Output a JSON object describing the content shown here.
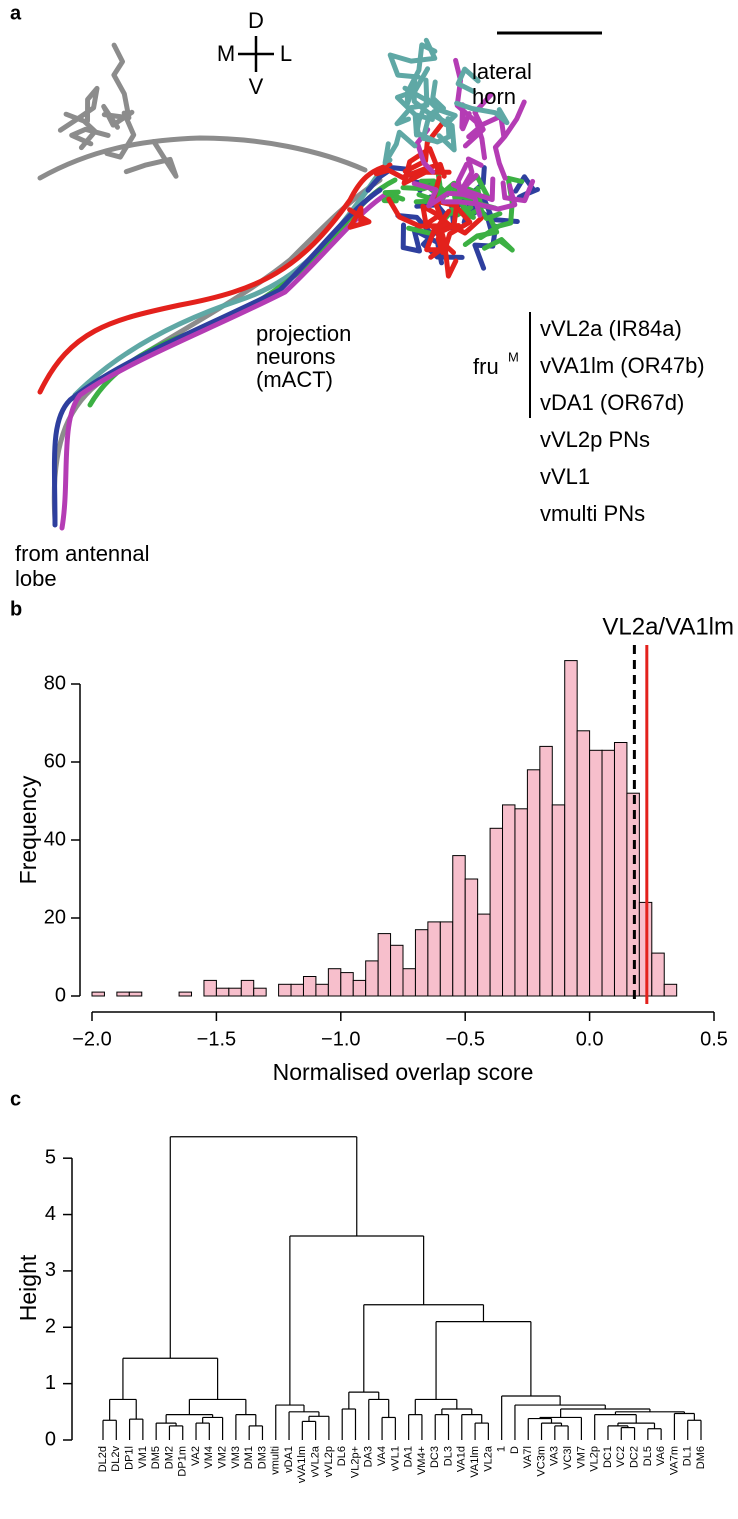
{
  "panel_a": {
    "label": "a",
    "compass": {
      "d": "D",
      "m": "M",
      "l": "L",
      "v": "V"
    },
    "lateral_horn": [
      "lateral",
      "horn"
    ],
    "projection_neurons": [
      "projection",
      "neurons",
      "(mACT)"
    ],
    "fru": "fru",
    "fru_superscript": "M",
    "legend": [
      {
        "name": "vVL2a (IR84a)",
        "color": "#2e3f9e"
      },
      {
        "name": "vVA1lm (OR47b)",
        "color": "#3cb043"
      },
      {
        "name": "vDA1 (OR67d)",
        "color": "#e3211c"
      },
      {
        "name": "vVL2p PNs",
        "color": "#b43cb4"
      },
      {
        "name": "vVL1",
        "color": "#5fa8a5"
      },
      {
        "name": "vmulti PNs",
        "color": "#8c8c8c"
      }
    ],
    "antennal_lobe": [
      "from antennal",
      "lobe"
    ]
  },
  "chart_data": [
    {
      "type": "histogram",
      "panel_label": "b",
      "xlabel": "Normalised overlap score",
      "ylabel": "Frequency",
      "bins": [
        -2.0,
        -1.95,
        -1.9,
        -1.85,
        -1.8,
        -1.75,
        -1.7,
        -1.65,
        -1.6,
        -1.55,
        -1.5,
        -1.45,
        -1.4,
        -1.35,
        -1.3,
        -1.25,
        -1.2,
        -1.15,
        -1.1,
        -1.05,
        -1.0,
        -0.95,
        -0.9,
        -0.85,
        -0.8,
        -0.75,
        -0.7,
        -0.65,
        -0.6,
        -0.55,
        -0.5,
        -0.45,
        -0.4,
        -0.35,
        -0.3,
        -0.25,
        -0.2,
        -0.15,
        -0.1,
        -0.05,
        0.0,
        0.05,
        0.1,
        0.15,
        0.2,
        0.25,
        0.3,
        0.35
      ],
      "values": [
        1,
        0,
        1,
        1,
        0,
        0,
        0,
        1,
        0,
        4,
        2,
        2,
        4,
        2,
        0,
        3,
        3,
        5,
        3,
        7,
        6,
        4,
        9,
        16,
        13,
        7,
        17,
        19,
        19,
        36,
        30,
        21,
        43,
        49,
        48,
        58,
        64,
        49,
        86,
        68,
        63,
        63,
        65,
        52,
        24,
        11,
        3
      ],
      "color": "#f7bfcc",
      "edgecolor": "#000000",
      "xlim": [
        -2.0,
        0.5
      ],
      "xticks": [
        {
          "value": -2.0,
          "label": "−2.0"
        },
        {
          "value": -1.5,
          "label": "−1.5"
        },
        {
          "value": -1.0,
          "label": "−1.0"
        },
        {
          "value": -0.5,
          "label": "−0.5"
        },
        {
          "value": 0.0,
          "label": "0.0"
        },
        0.5
      ],
      "ylim": [
        0,
        90
      ],
      "yticks": [
        0,
        20,
        40,
        60,
        80
      ],
      "lines": [
        {
          "value": 0.18,
          "style": "dashed",
          "color": "#000000"
        },
        {
          "value": 0.23,
          "style": "solid",
          "color": "#e3211c",
          "label": "VL2a/VA1lm"
        }
      ]
    },
    {
      "type": "dendrogram",
      "panel_label": "c",
      "ylabel": "Height",
      "ylim": [
        0,
        5.5
      ],
      "yticks": [
        0,
        1,
        2,
        3,
        4,
        5
      ],
      "tree": {
        "height": 5.38,
        "children": [
          {
            "height": 1.45,
            "children": [
              {
                "height": 0.72,
                "children": [
                  {
                    "height": 0.35,
                    "children": [
                      {
                        "label": "DL2d"
                      },
                      {
                        "label": "DL2v"
                      }
                    ]
                  },
                  {
                    "height": 0.37,
                    "children": [
                      {
                        "label": "DP1l"
                      },
                      {
                        "label": "VM1"
                      }
                    ]
                  }
                ]
              },
              {
                "height": 0.72,
                "children": [
                  {
                    "height": 0.45,
                    "children": [
                      {
                        "height": 0.3,
                        "children": [
                          {
                            "label": "DM5"
                          },
                          {
                            "height": 0.25,
                            "children": [
                              {
                                "label": "DM2"
                              },
                              {
                                "label": "DP1m"
                              }
                            ]
                          }
                        ]
                      },
                      {
                        "height": 0.4,
                        "children": [
                          {
                            "height": 0.3,
                            "children": [
                              {
                                "label": "VA2"
                              },
                              {
                                "label": "VM4"
                              }
                            ]
                          },
                          {
                            "label": "VM2"
                          }
                        ]
                      }
                    ]
                  },
                  {
                    "height": 0.45,
                    "children": [
                      {
                        "label": "VM3"
                      },
                      {
                        "height": 0.25,
                        "children": [
                          {
                            "label": "DM1"
                          },
                          {
                            "label": "DM3"
                          }
                        ]
                      }
                    ]
                  }
                ]
              }
            ]
          },
          {
            "height": 3.62,
            "children": [
              {
                "height": 0.62,
                "children": [
                  {
                    "label": "vmulti"
                  },
                  {
                    "height": 0.5,
                    "children": [
                      {
                        "label": "vDA1",
                        "color": "#e3211c"
                      },
                      {
                        "height": 0.42,
                        "children": [
                          {
                            "height": 0.33,
                            "children": [
                              {
                                "label": "vVA1lm",
                                "color": "#3cb043"
                              },
                              {
                                "label": "vVL2a",
                                "color": "#2e3f9e"
                              }
                            ]
                          },
                          {
                            "label": "vVL2p",
                            "color": "#b43cb4"
                          }
                        ]
                      }
                    ]
                  }
                ]
              },
              {
                "height": 2.4,
                "children": [
                  {
                    "height": 0.85,
                    "children": [
                      {
                        "height": 0.55,
                        "children": [
                          {
                            "label": "DL6"
                          },
                          {
                            "label": "VL2p+"
                          }
                        ]
                      },
                      {
                        "height": 0.72,
                        "children": [
                          {
                            "label": "DA3"
                          },
                          {
                            "height": 0.4,
                            "children": [
                              {
                                "label": "VA4"
                              },
                              {
                                "label": "vVL1"
                              }
                            ]
                          }
                        ]
                      }
                    ]
                  },
                  {
                    "height": 2.1,
                    "children": [
                      {
                        "height": 0.72,
                        "children": [
                          {
                            "height": 0.45,
                            "children": [
                              {
                                "label": "DA1",
                                "color": "#e3211c"
                              },
                              {
                                "label": "VM4+"
                              }
                            ]
                          },
                          {
                            "height": 0.55,
                            "children": [
                              {
                                "height": 0.45,
                                "children": [
                                  {
                                    "label": "DC3"
                                  },
                                  {
                                    "label": "DL3"
                                  }
                                ]
                              },
                              {
                                "height": 0.45,
                                "children": [
                                  {
                                    "label": "VA1d"
                                  },
                                  {
                                    "height": 0.3,
                                    "children": [
                                      {
                                        "label": "VA1lm",
                                        "color": "#3cb043"
                                      },
                                      {
                                        "label": "VL2a",
                                        "color": "#2e3f9e"
                                      }
                                    ]
                                  }
                                ]
                              }
                            ]
                          }
                        ]
                      },
                      {
                        "height": 0.78,
                        "children": [
                          {
                            "label": "1"
                          },
                          {
                            "height": 0.62,
                            "children": [
                              {
                                "label": "D"
                              },
                              {
                                "height": 0.55,
                                "children": [
                                  {
                                    "height": 0.4,
                                    "children": [
                                      {
                                        "height": 0.38,
                                        "children": [
                                          {
                                            "label": "VA7l"
                                          },
                                          {
                                            "height": 0.3,
                                            "children": [
                                              {
                                                "label": "VC3m"
                                              },
                                              {
                                                "height": 0.25,
                                                "children": [
                                                  {
                                                    "label": "VA3"
                                                  },
                                                  {
                                                    "label": "VC3l"
                                                  }
                                                ]
                                              }
                                            ]
                                          }
                                        ]
                                      },
                                      {
                                        "label": "VM7"
                                      }
                                    ]
                                  },
                                  {
                                    "height": 0.5,
                                    "children": [
                                      {
                                        "height": 0.45,
                                        "children": [
                                          {
                                            "label": "VL2p"
                                          },
                                          {
                                            "height": 0.3,
                                            "children": [
                                              {
                                                "height": 0.25,
                                                "children": [
                                                  {
                                                    "label": "DC1"
                                                  },
                                                  {
                                                    "height": 0.22,
                                                    "children": [
                                                      {
                                                        "label": "VC2"
                                                      },
                                                      {
                                                        "label": "DC2"
                                                      }
                                                    ]
                                                  }
                                                ]
                                              },
                                              {
                                                "height": 0.2,
                                                "children": [
                                                  {
                                                    "label": "DL5"
                                                  },
                                                  {
                                                    "label": "VA6"
                                                  }
                                                ]
                                              }
                                            ]
                                          }
                                        ]
                                      },
                                      {
                                        "height": 0.47,
                                        "children": [
                                          {
                                            "label": "VA7m"
                                          },
                                          {
                                            "height": 0.35,
                                            "children": [
                                              {
                                                "label": "DL1"
                                              },
                                              {
                                                "label": "DM6"
                                              }
                                            ]
                                          }
                                        ]
                                      }
                                    ]
                                  }
                                ]
                              }
                            ]
                          }
                        ]
                      }
                    ]
                  }
                ]
              }
            ]
          }
        ]
      }
    }
  ]
}
